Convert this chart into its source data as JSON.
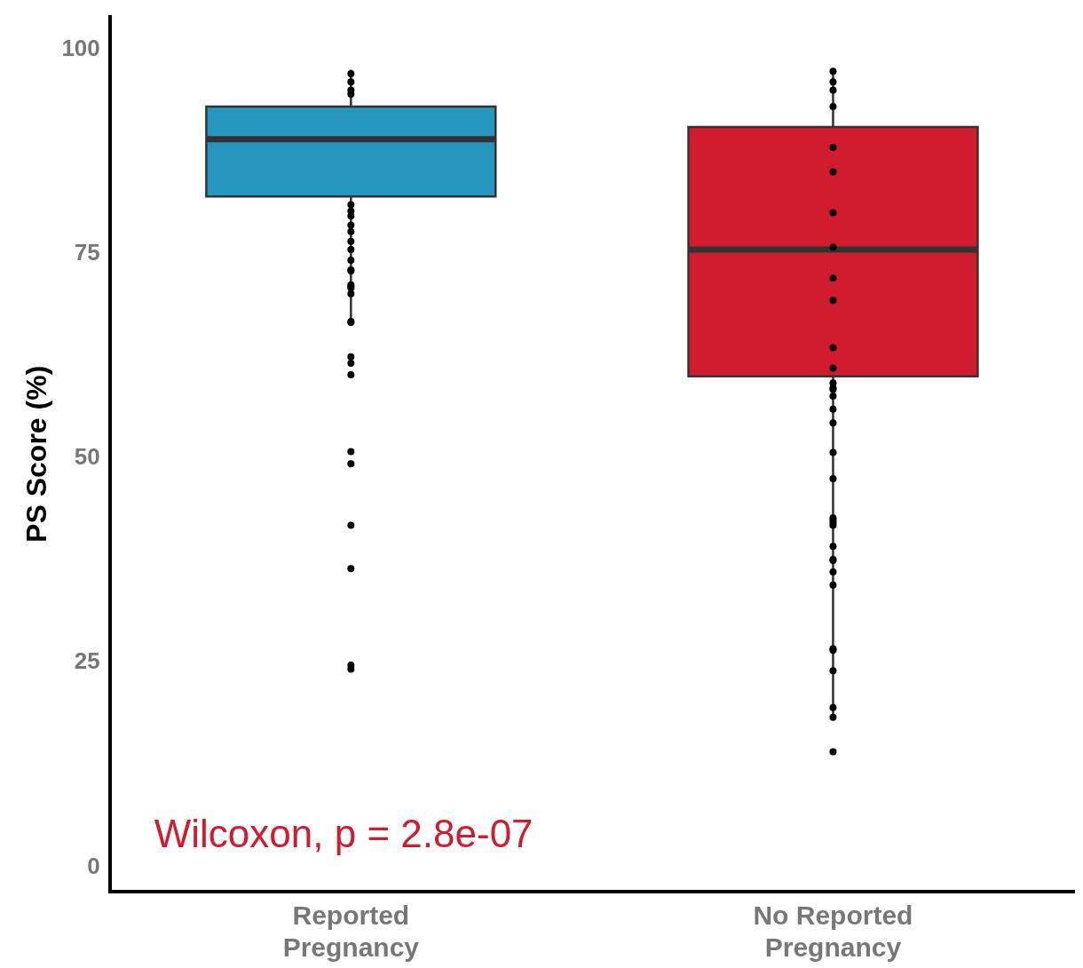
{
  "chart_data": {
    "type": "box",
    "ylabel": "PS Score (%)",
    "categories": [
      "Reported Pregnancy",
      "No Reported Pregnancy"
    ],
    "colors": [
      "#2596be",
      "#d01c2e"
    ],
    "boxes": [
      {
        "low": 66.5,
        "q1": 82,
        "median": 89,
        "q3": 93,
        "high": 97.5
      },
      {
        "low": 18.5,
        "q1": 60,
        "median": 75.5,
        "q3": 90.5,
        "high": 97
      }
    ],
    "series": [
      {
        "type": "scatter",
        "color": "#000000",
        "x": [
          "Reported Pregnancy",
          "Reported Pregnancy",
          "Reported Pregnancy",
          "Reported Pregnancy",
          "Reported Pregnancy",
          "Reported Pregnancy",
          "Reported Pregnancy",
          "Reported Pregnancy",
          "Reported Pregnancy",
          "Reported Pregnancy",
          "Reported Pregnancy",
          "Reported Pregnancy",
          "Reported Pregnancy",
          "Reported Pregnancy",
          "Reported Pregnancy",
          "Reported Pregnancy",
          "Reported Pregnancy",
          "Reported Pregnancy",
          "Reported Pregnancy",
          "Reported Pregnancy",
          "Reported Pregnancy",
          "Reported Pregnancy",
          "Reported Pregnancy",
          "Reported Pregnancy",
          "Reported Pregnancy",
          "Reported Pregnancy",
          "Reported Pregnancy",
          "Reported Pregnancy",
          "Reported Pregnancy",
          "No Reported Pregnancy",
          "No Reported Pregnancy",
          "No Reported Pregnancy",
          "No Reported Pregnancy",
          "No Reported Pregnancy",
          "No Reported Pregnancy",
          "No Reported Pregnancy",
          "No Reported Pregnancy",
          "No Reported Pregnancy",
          "No Reported Pregnancy",
          "No Reported Pregnancy",
          "No Reported Pregnancy",
          "No Reported Pregnancy",
          "No Reported Pregnancy",
          "No Reported Pregnancy",
          "No Reported Pregnancy",
          "No Reported Pregnancy",
          "No Reported Pregnancy",
          "No Reported Pregnancy",
          "No Reported Pregnancy",
          "No Reported Pregnancy",
          "No Reported Pregnancy",
          "No Reported Pregnancy",
          "No Reported Pregnancy",
          "No Reported Pregnancy",
          "No Reported Pregnancy",
          "No Reported Pregnancy",
          "No Reported Pregnancy",
          "No Reported Pregnancy",
          "No Reported Pregnancy",
          "No Reported Pregnancy",
          "No Reported Pregnancy",
          "No Reported Pregnancy",
          "No Reported Pregnancy",
          "No Reported Pregnancy"
        ],
        "values": [
          60.2,
          50.8,
          36.5,
          24.2,
          24.7,
          41.8,
          49.3,
          61.6,
          62.4,
          76.5,
          70.8,
          74.2,
          71,
          71.2,
          70.1,
          72.9,
          73,
          75.5,
          77.7,
          66.7,
          66.6,
          78.5,
          79.6,
          80.2,
          81,
          95,
          96,
          97,
          94.5,
          54.3,
          50.7,
          58.4,
          47.5,
          41.8,
          39.2,
          34.5,
          24,
          18.3,
          14.1,
          26.5,
          37.5,
          37.6,
          42.4,
          26.7,
          42.7,
          42.1,
          36.1,
          19.5,
          56,
          57.6,
          58.6,
          59.2,
          61,
          63.5,
          69.3,
          72,
          75.8,
          80,
          85,
          88,
          93,
          95,
          96,
          97.3
        ]
      }
    ],
    "marker": "circle",
    "ylim": [
      -3,
      104
    ],
    "yticks": [
      0,
      25,
      50,
      75,
      100
    ],
    "grid": false,
    "legend": false,
    "annotations": [
      "Wilcoxon, p = 2.8e-07"
    ]
  }
}
